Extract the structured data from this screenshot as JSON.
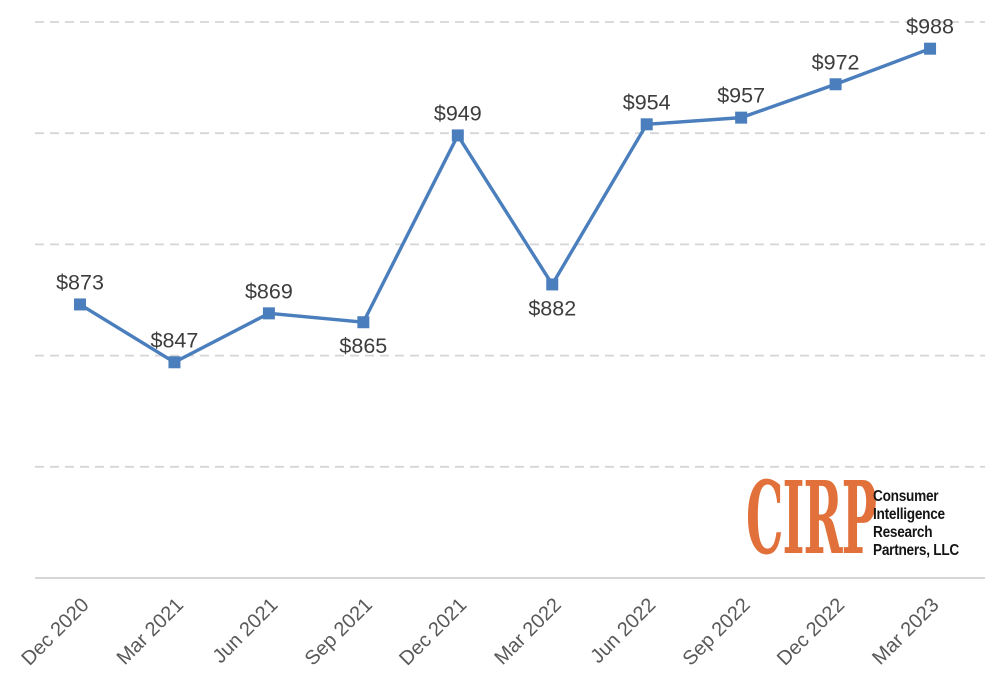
{
  "chart_data": {
    "type": "line",
    "categories": [
      "Dec 2020",
      "Mar 2021",
      "Jun 2021",
      "Sep 2021",
      "Dec 2021",
      "Mar 2022",
      "Jun 2022",
      "Sep 2022",
      "Dec 2022",
      "Mar 2023"
    ],
    "values": [
      873,
      847,
      869,
      865,
      949,
      882,
      954,
      957,
      972,
      988
    ],
    "point_labels": [
      "$873",
      "$847",
      "$869",
      "$865",
      "$949",
      "$882",
      "$954",
      "$957",
      "$972",
      "$988"
    ],
    "label_positions": [
      "above",
      "above",
      "above",
      "below",
      "above",
      "below",
      "above",
      "above",
      "above",
      "above"
    ],
    "title": "",
    "xlabel": "",
    "ylabel": "",
    "ylim": [
      750,
      1000
    ],
    "gridline_step": 50,
    "grid": "dashed-horizontal",
    "legend": "none",
    "colors": {
      "line": "#4a7ebc",
      "marker": "#4a7ebc",
      "grid": "#d6d6d6",
      "axis": "#c9c9c9",
      "point_label": "#3d3d3d",
      "tick_label": "#595959"
    }
  },
  "logo": {
    "acronym": "CIRP",
    "lines": [
      "Consumer",
      "Intelligence",
      "Research",
      "Partners, LLC"
    ],
    "colors": {
      "accent": "#e2703b",
      "text": "#141414"
    }
  }
}
